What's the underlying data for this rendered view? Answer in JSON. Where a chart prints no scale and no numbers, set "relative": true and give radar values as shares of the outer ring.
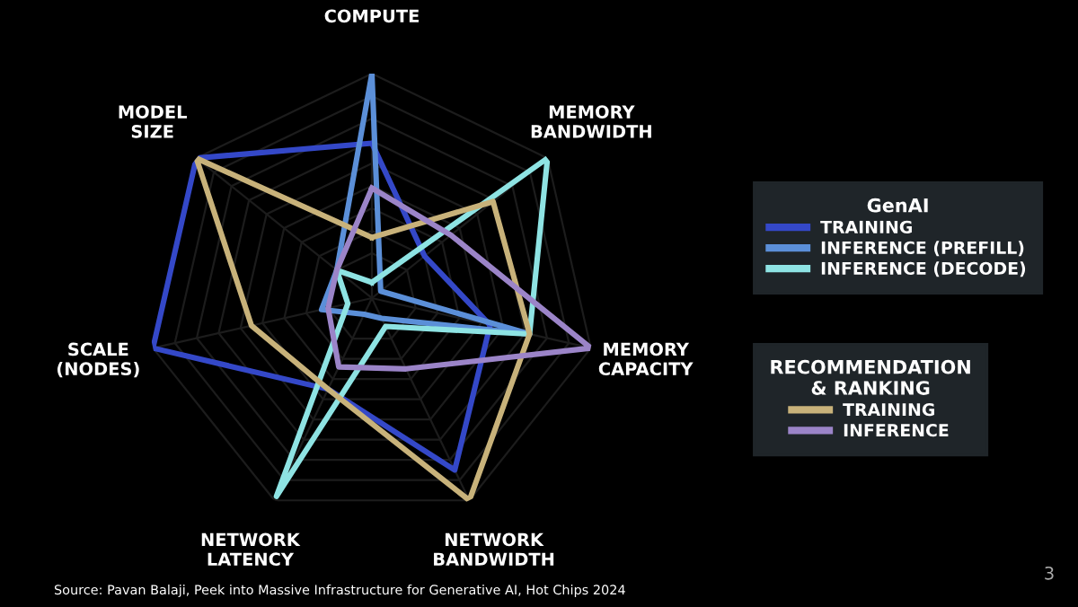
{
  "chart_data": {
    "type": "radar",
    "relative": true,
    "grid": true,
    "legend": "right",
    "marker": "none",
    "line_style": "solid",
    "categories": [
      "COMPUTE",
      "MEMORY BANDWIDTH",
      "MEMORY CAPACITY",
      "NETWORK BANDWIDTH",
      "NETWORK LATENCY",
      "SCALE (NODES)",
      "MODEL SIZE"
    ],
    "legend_title": "GenAI",
    "series": [
      {
        "name": "TRAINING",
        "color": "#3448c8",
        "values": [
          0.69,
          0.3,
          0.54,
          0.85,
          0.45,
          1.0,
          1.0
        ]
      },
      {
        "name": "INFERENCE (PREFILL)",
        "color": "#5b8fd8",
        "values": [
          1.0,
          0.05,
          0.72,
          0.1,
          0.08,
          0.23,
          0.2
        ]
      },
      {
        "name": "INFERENCE (DECODE)",
        "color": "#8ee3e3",
        "values": [
          0.07,
          1.0,
          0.72,
          0.14,
          0.98,
          0.11,
          0.2
        ]
      },
      {
        "name": "TRAINING",
        "color": "#c8b27a",
        "values": [
          0.27,
          0.69,
          0.72,
          1.0,
          0.45,
          0.55,
          1.0
        ]
      },
      {
        "name": "INFERENCE",
        "color": "#9b84c8",
        "values": [
          0.49,
          0.45,
          1.0,
          0.35,
          0.34,
          0.2,
          0.2
        ]
      }
    ],
    "annotations": [
      "RECOMMENDATION & RANKING",
      "Source: Pavan Balaji, Peek into Massive Infrastructure for Generative AI, Hot Chips 2024",
      "3"
    ]
  }
}
